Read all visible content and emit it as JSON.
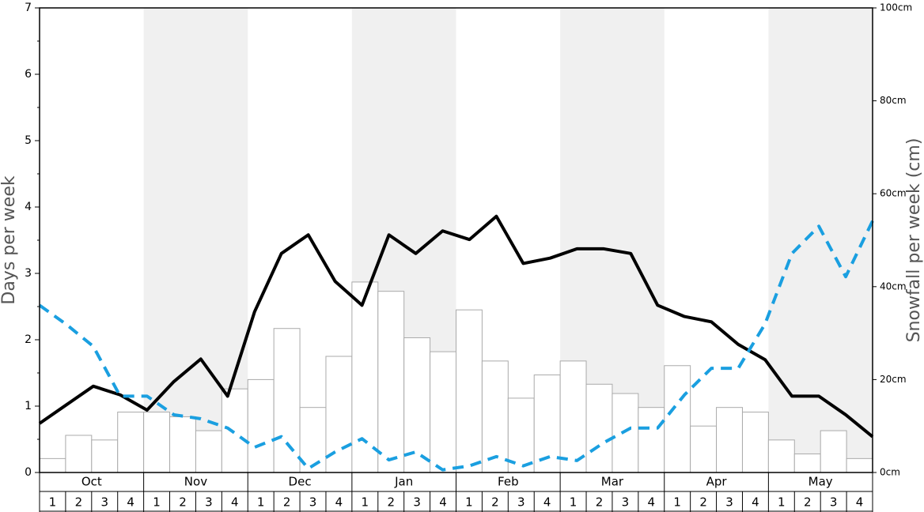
{
  "chart_data": {
    "type": "bar",
    "y_label": "Days per week",
    "y2_label": "Snowfall per week (cm)",
    "months": [
      "Oct",
      "Nov",
      "Dec",
      "Jan",
      "Feb",
      "Mar",
      "Apr",
      "May"
    ],
    "categories": [
      "1",
      "2",
      "3",
      "4",
      "1",
      "2",
      "3",
      "4",
      "1",
      "2",
      "3",
      "4",
      "1",
      "2",
      "3",
      "4",
      "1",
      "2",
      "3",
      "4",
      "1",
      "2",
      "3",
      "4",
      "1",
      "2",
      "3",
      "4",
      "1",
      "2",
      "3",
      "4"
    ],
    "ylim": [
      0,
      7
    ],
    "yticks": [
      0,
      1,
      2,
      3,
      4,
      5,
      6,
      7
    ],
    "y2lim": [
      0,
      100
    ],
    "y2ticks": [
      {
        "value": 0,
        "label": "0cm"
      },
      {
        "value": 20,
        "label": "20cm"
      },
      {
        "value": 40,
        "label": "40cm"
      },
      {
        "value": 60,
        "label": "60cm"
      },
      {
        "value": 80,
        "label": "80cm"
      },
      {
        "value": 100,
        "label": "100cm"
      }
    ],
    "series": [
      {
        "type": "bar",
        "axis": "y2",
        "color": "#ffffff",
        "values": [
          3,
          8,
          7,
          13,
          13,
          12,
          9,
          18,
          20,
          31,
          14,
          25,
          41,
          39,
          29,
          26,
          35,
          24,
          16,
          21,
          24,
          19,
          17,
          14,
          23,
          10,
          14,
          13,
          7,
          4,
          9,
          3
        ]
      },
      {
        "type": "line",
        "color": "#000000",
        "values": [
          0.74,
          1.02,
          1.3,
          1.17,
          0.94,
          1.37,
          1.71,
          1.15,
          2.42,
          3.3,
          3.58,
          2.88,
          2.52,
          3.58,
          3.3,
          3.64,
          3.51,
          3.86,
          3.15,
          3.23,
          3.37,
          3.37,
          3.3,
          2.52,
          2.35,
          2.27,
          1.93,
          1.7,
          1.15,
          1.15,
          0.87,
          0.54
        ]
      },
      {
        "type": "dashed-line",
        "color": "#1a9fe0",
        "values": [
          2.52,
          2.23,
          1.9,
          1.15,
          1.15,
          0.87,
          0.81,
          0.67,
          0.38,
          0.54,
          0.06,
          0.31,
          0.51,
          0.19,
          0.31,
          0.04,
          0.1,
          0.24,
          0.1,
          0.24,
          0.18,
          0.45,
          0.67,
          0.67,
          1.17,
          1.57,
          1.57,
          2.24,
          3.3,
          3.71,
          2.95,
          3.79
        ]
      }
    ]
  }
}
